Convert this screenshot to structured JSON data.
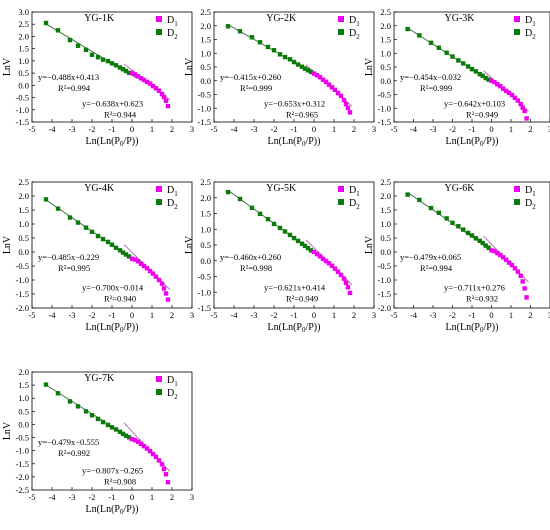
{
  "figure": {
    "panels": [
      {
        "title": "YG-1K",
        "xlabel": "Ln(Ln(P0/P))",
        "ylabel": "LnV",
        "x_ticks": [
          "-5",
          "-4",
          "-3",
          "-2",
          "-1",
          "0",
          "1",
          "2",
          "3"
        ],
        "y_ticks": [
          "3.0",
          "2.5",
          "2.0",
          "1.5",
          "1.0",
          "0.5",
          "0.0",
          "-0.5",
          "-1.0",
          "-1.5"
        ],
        "legend": [
          "D1",
          "D2"
        ],
        "eq1": "y=−0.488x+0.413",
        "r2_1": "R²=0.994",
        "eq2": "y=−0.638x+0.623",
        "r2_2": "R²=0.944"
      },
      {
        "title": "YG-2K",
        "xlabel": "Ln(Ln(P0/P))",
        "ylabel": "LnV",
        "x_ticks": [
          "-5",
          "-4",
          "-3",
          "-2",
          "-1",
          "0",
          "1",
          "2",
          "3"
        ],
        "y_ticks": [
          "2.5",
          "2.0",
          "1.5",
          "1.0",
          "0.5",
          "0.0",
          "-0.5",
          "-1.0",
          "-1.5"
        ],
        "legend": [
          "D1",
          "D2"
        ],
        "eq1": "y=−0.415x+0.260",
        "r2_1": "R²=0.999",
        "eq2": "y=−0.653x+0.312",
        "r2_2": "R²=0.965"
      },
      {
        "title": "YG-3K",
        "xlabel": "Ln(Ln(P0/P))",
        "ylabel": "LnV",
        "x_ticks": [
          "-5",
          "-4",
          "-3",
          "-2",
          "-1",
          "0",
          "1",
          "2",
          "3"
        ],
        "y_ticks": [
          "2.5",
          "2.0",
          "1.5",
          "1.0",
          "0.5",
          "0.0",
          "-0.5",
          "-1.0",
          "-1.5"
        ],
        "legend": [
          "D1",
          "D2"
        ],
        "eq1": "y=−0.454x−0.032",
        "r2_1": "R²=0.999",
        "eq2": "y=−0.642x+0.103",
        "r2_2": "R²=0.949"
      },
      {
        "title": "YG-4K",
        "xlabel": "Ln(Ln(P0/P))",
        "ylabel": "LnV",
        "x_ticks": [
          "-5",
          "-4",
          "-3",
          "-2",
          "-1",
          "0",
          "1",
          "2",
          "3"
        ],
        "y_ticks": [
          "2.5",
          "2.0",
          "1.5",
          "1.0",
          "0.5",
          "0.0",
          "-0.5",
          "-1.0",
          "-1.5",
          "-2.0"
        ],
        "legend": [
          "D1",
          "D2"
        ],
        "eq1": "y=−0.485x−0.229",
        "r2_1": "R²=0.995",
        "eq2": "y=−0.700x−0.014",
        "r2_2": "R²=0.940"
      },
      {
        "title": "YG-5K",
        "xlabel": "Ln(Ln(P0/P))",
        "ylabel": "LnV",
        "x_ticks": [
          "-5",
          "-4",
          "-3",
          "-2",
          "-1",
          "0",
          "1",
          "2",
          "3"
        ],
        "y_ticks": [
          "2.5",
          "2.0",
          "1.5",
          "1.0",
          "0.5",
          "0.0",
          "-0.5",
          "-1.0",
          "-1.5"
        ],
        "legend": [
          "D1",
          "D2"
        ],
        "eq1": "y=−0.460x+0.260",
        "r2_1": "R²=0.998",
        "eq2": "y=−0.621x+0.414",
        "r2_2": "R²=0.949"
      },
      {
        "title": "YG-6K",
        "xlabel": "Ln(Ln(P0/P))",
        "ylabel": "LnV",
        "x_ticks": [
          "-5",
          "-4",
          "-3",
          "-2",
          "-1",
          "0",
          "1",
          "2",
          "3"
        ],
        "y_ticks": [
          "2.5",
          "2.0",
          "1.5",
          "1.0",
          "0.5",
          "0.0",
          "-0.5",
          "-1.0",
          "-1.5",
          "-2.0"
        ],
        "legend": [
          "D1",
          "D2"
        ],
        "eq1": "y=−0.479x+0.065",
        "r2_1": "R²=0.994",
        "eq2": "y=−0.711x+0.276",
        "r2_2": "R²=0.932"
      },
      {
        "title": "YG-7K",
        "xlabel": "Ln(Ln(P0/P))",
        "ylabel": "LnV",
        "x_ticks": [
          "-5",
          "-4",
          "-3",
          "-2",
          "-1",
          "0",
          "1",
          "2",
          "3"
        ],
        "y_ticks": [
          "2.0",
          "1.5",
          "1.0",
          "0.5",
          "0.0",
          "-0.5",
          "-1.0",
          "-1.5",
          "-2.0",
          "-2.5"
        ],
        "legend": [
          "D1",
          "D2"
        ],
        "eq1": "y=−0.479x−0.555",
        "r2_1": "R²=0.992",
        "eq2": "y=−0.807x−0.265",
        "r2_2": "R²=0.908"
      }
    ]
  },
  "colors": {
    "d1": "#ee00ee",
    "d2": "#0b7a0b",
    "fit_d2": "#2c6e2c",
    "fit_d1": "#aa66aa"
  },
  "chart_data": [
    {
      "type": "scatter",
      "title": "YG-1K",
      "xlabel": "Ln(Ln(P0/P))",
      "ylabel": "LnV",
      "xlim": [
        -5,
        3
      ],
      "ylim": [
        -1.5,
        3.0
      ],
      "grid": false,
      "legend_position": "top-right",
      "series": [
        {
          "name": "D2",
          "fit": {
            "slope": -0.488,
            "intercept": 0.413,
            "r2": 0.994
          },
          "x": [
            -4.3,
            -3.7,
            -3.1,
            -2.7,
            -2.3,
            -2.0,
            -1.7,
            -1.45,
            -1.2,
            -1.0,
            -0.8,
            -0.6,
            -0.45,
            -0.3,
            -0.15
          ],
          "y": [
            2.55,
            2.25,
            1.85,
            1.62,
            1.45,
            1.25,
            1.15,
            1.05,
            0.99,
            0.9,
            0.82,
            0.73,
            0.66,
            0.59,
            0.51
          ]
        },
        {
          "name": "D1",
          "fit": {
            "slope": -0.638,
            "intercept": 0.623,
            "r2": 0.944
          },
          "x": [
            0.0,
            0.15,
            0.3,
            0.45,
            0.6,
            0.75,
            0.9,
            1.05,
            1.2,
            1.35,
            1.5,
            1.6,
            1.7,
            1.8
          ],
          "y": [
            0.5,
            0.45,
            0.37,
            0.29,
            0.22,
            0.14,
            0.07,
            -0.03,
            -0.12,
            -0.22,
            -0.36,
            -0.48,
            -0.63,
            -0.85
          ]
        }
      ]
    },
    {
      "type": "scatter",
      "title": "YG-2K",
      "xlabel": "Ln(Ln(P0/P))",
      "ylabel": "LnV",
      "xlim": [
        -5,
        3
      ],
      "ylim": [
        -1.5,
        2.5
      ],
      "grid": false,
      "legend_position": "top-right",
      "series": [
        {
          "name": "D2",
          "fit": {
            "slope": -0.415,
            "intercept": 0.26,
            "r2": 0.999
          },
          "x": [
            -4.3,
            -3.7,
            -3.1,
            -2.7,
            -2.3,
            -2.0,
            -1.7,
            -1.45,
            -1.2,
            -1.0,
            -0.8,
            -0.6,
            -0.45,
            -0.3,
            -0.15
          ],
          "y": [
            1.98,
            1.8,
            1.58,
            1.4,
            1.23,
            1.11,
            0.96,
            0.86,
            0.78,
            0.68,
            0.59,
            0.51,
            0.44,
            0.38,
            0.32
          ]
        },
        {
          "name": "D1",
          "fit": {
            "slope": -0.653,
            "intercept": 0.312,
            "r2": 0.965
          },
          "x": [
            0.0,
            0.15,
            0.3,
            0.45,
            0.6,
            0.75,
            0.9,
            1.05,
            1.2,
            1.35,
            1.5,
            1.6,
            1.7,
            1.8
          ],
          "y": [
            0.26,
            0.2,
            0.13,
            0.04,
            -0.04,
            -0.14,
            -0.24,
            -0.33,
            -0.45,
            -0.55,
            -0.7,
            -0.85,
            -0.99,
            -1.15
          ]
        }
      ]
    },
    {
      "type": "scatter",
      "title": "YG-3K",
      "xlabel": "Ln(Ln(P0/P))",
      "ylabel": "LnV",
      "xlim": [
        -5,
        3
      ],
      "ylim": [
        -1.5,
        2.5
      ],
      "grid": false,
      "legend_position": "top-right",
      "series": [
        {
          "name": "D2",
          "fit": {
            "slope": -0.454,
            "intercept": -0.032,
            "r2": 0.999
          },
          "x": [
            -4.3,
            -3.7,
            -3.1,
            -2.7,
            -2.3,
            -2.0,
            -1.7,
            -1.45,
            -1.2,
            -1.0,
            -0.8,
            -0.6,
            -0.45,
            -0.3,
            -0.15
          ],
          "y": [
            1.88,
            1.65,
            1.38,
            1.2,
            1.02,
            0.88,
            0.74,
            0.63,
            0.52,
            0.42,
            0.34,
            0.24,
            0.18,
            0.1,
            0.04
          ]
        },
        {
          "name": "D1",
          "fit": {
            "slope": -0.642,
            "intercept": 0.103,
            "r2": 0.949
          },
          "x": [
            0.0,
            0.15,
            0.3,
            0.45,
            0.6,
            0.75,
            0.9,
            1.05,
            1.2,
            1.35,
            1.5,
            1.6,
            1.7,
            1.8
          ],
          "y": [
            0.0,
            -0.05,
            -0.13,
            -0.2,
            -0.29,
            -0.37,
            -0.44,
            -0.52,
            -0.62,
            -0.72,
            -0.85,
            -0.98,
            -1.1,
            -1.37
          ]
        }
      ]
    },
    {
      "type": "scatter",
      "title": "YG-4K",
      "xlabel": "Ln(Ln(P0/P))",
      "ylabel": "LnV",
      "xlim": [
        -5,
        3
      ],
      "ylim": [
        -2.0,
        2.5
      ],
      "grid": false,
      "legend_position": "top-right",
      "series": [
        {
          "name": "D2",
          "fit": {
            "slope": -0.485,
            "intercept": -0.229,
            "r2": 0.995
          },
          "x": [
            -4.3,
            -3.7,
            -3.1,
            -2.7,
            -2.3,
            -2.0,
            -1.7,
            -1.45,
            -1.2,
            -1.0,
            -0.8,
            -0.6,
            -0.45,
            -0.3,
            -0.15
          ],
          "y": [
            1.88,
            1.55,
            1.23,
            1.05,
            0.87,
            0.72,
            0.57,
            0.46,
            0.36,
            0.26,
            0.15,
            0.06,
            -0.02,
            -0.09,
            -0.16
          ]
        },
        {
          "name": "D1",
          "fit": {
            "slope": -0.7,
            "intercept": -0.014,
            "r2": 0.94
          },
          "x": [
            0.0,
            0.15,
            0.3,
            0.45,
            0.6,
            0.75,
            0.9,
            1.05,
            1.2,
            1.35,
            1.5,
            1.6,
            1.7,
            1.8
          ],
          "y": [
            -0.24,
            -0.27,
            -0.33,
            -0.42,
            -0.5,
            -0.58,
            -0.68,
            -0.77,
            -0.88,
            -1.0,
            -1.13,
            -1.3,
            -1.48,
            -1.7
          ]
        }
      ]
    },
    {
      "type": "scatter",
      "title": "YG-5K",
      "xlabel": "Ln(Ln(P0/P))",
      "ylabel": "LnV",
      "xlim": [
        -5,
        3
      ],
      "ylim": [
        -1.5,
        2.5
      ],
      "grid": false,
      "legend_position": "top-right",
      "series": [
        {
          "name": "D2",
          "fit": {
            "slope": -0.46,
            "intercept": 0.26,
            "r2": 0.998
          },
          "x": [
            -4.3,
            -3.7,
            -3.1,
            -2.7,
            -2.3,
            -2.0,
            -1.7,
            -1.45,
            -1.2,
            -1.0,
            -0.8,
            -0.6,
            -0.45,
            -0.3,
            -0.15
          ],
          "y": [
            2.18,
            1.96,
            1.68,
            1.49,
            1.32,
            1.17,
            1.04,
            0.93,
            0.82,
            0.72,
            0.63,
            0.54,
            0.47,
            0.4,
            0.33
          ]
        },
        {
          "name": "D1",
          "fit": {
            "slope": -0.621,
            "intercept": 0.414,
            "r2": 0.949
          },
          "x": [
            0.0,
            0.15,
            0.3,
            0.45,
            0.6,
            0.75,
            0.9,
            1.05,
            1.2,
            1.35,
            1.5,
            1.6,
            1.7,
            1.8
          ],
          "y": [
            0.28,
            0.21,
            0.14,
            0.06,
            -0.01,
            -0.08,
            -0.16,
            -0.25,
            -0.35,
            -0.45,
            -0.57,
            -0.7,
            -0.84,
            -1.02
          ]
        }
      ]
    },
    {
      "type": "scatter",
      "title": "YG-6K",
      "xlabel": "Ln(Ln(P0/P))",
      "ylabel": "LnV",
      "xlim": [
        -5,
        3
      ],
      "ylim": [
        -2.0,
        2.5
      ],
      "grid": false,
      "legend_position": "top-right",
      "series": [
        {
          "name": "D2",
          "fit": {
            "slope": -0.479,
            "intercept": 0.065,
            "r2": 0.994
          },
          "x": [
            -4.3,
            -3.7,
            -3.1,
            -2.7,
            -2.3,
            -2.0,
            -1.7,
            -1.45,
            -1.2,
            -1.0,
            -0.8,
            -0.6,
            -0.45,
            -0.3,
            -0.15
          ],
          "y": [
            2.05,
            1.86,
            1.57,
            1.4,
            1.2,
            1.04,
            0.92,
            0.8,
            0.68,
            0.59,
            0.49,
            0.4,
            0.32,
            0.23,
            0.15
          ]
        },
        {
          "name": "D1",
          "fit": {
            "slope": -0.711,
            "intercept": 0.276,
            "r2": 0.932
          },
          "x": [
            0.0,
            0.15,
            0.3,
            0.45,
            0.6,
            0.75,
            0.9,
            1.05,
            1.2,
            1.35,
            1.5,
            1.6,
            1.7,
            1.8
          ],
          "y": [
            0.06,
            0.03,
            -0.04,
            -0.11,
            -0.19,
            -0.28,
            -0.38,
            -0.47,
            -0.58,
            -0.7,
            -0.85,
            -1.05,
            -1.3,
            -1.62
          ]
        }
      ]
    },
    {
      "type": "scatter",
      "title": "YG-7K",
      "xlabel": "Ln(Ln(P0/P))",
      "ylabel": "LnV",
      "xlim": [
        -5,
        3
      ],
      "ylim": [
        -2.5,
        2.0
      ],
      "grid": false,
      "legend_position": "top-right",
      "series": [
        {
          "name": "D2",
          "fit": {
            "slope": -0.479,
            "intercept": -0.555,
            "r2": 0.992
          },
          "x": [
            -4.3,
            -3.7,
            -3.1,
            -2.7,
            -2.3,
            -2.0,
            -1.7,
            -1.45,
            -1.2,
            -1.0,
            -0.8,
            -0.6,
            -0.45,
            -0.3,
            -0.15
          ],
          "y": [
            1.52,
            1.19,
            0.88,
            0.69,
            0.5,
            0.35,
            0.21,
            0.09,
            -0.02,
            -0.11,
            -0.19,
            -0.28,
            -0.36,
            -0.43,
            -0.49
          ]
        },
        {
          "name": "D1",
          "fit": {
            "slope": -0.807,
            "intercept": -0.265,
            "r2": 0.908
          },
          "x": [
            0.0,
            0.15,
            0.3,
            0.45,
            0.6,
            0.75,
            0.9,
            1.05,
            1.2,
            1.35,
            1.5,
            1.6,
            1.7,
            1.8
          ],
          "y": [
            -0.56,
            -0.6,
            -0.66,
            -0.74,
            -0.83,
            -0.92,
            -1.02,
            -1.13,
            -1.24,
            -1.37,
            -1.52,
            -1.7,
            -1.9,
            -2.2
          ]
        }
      ]
    }
  ]
}
